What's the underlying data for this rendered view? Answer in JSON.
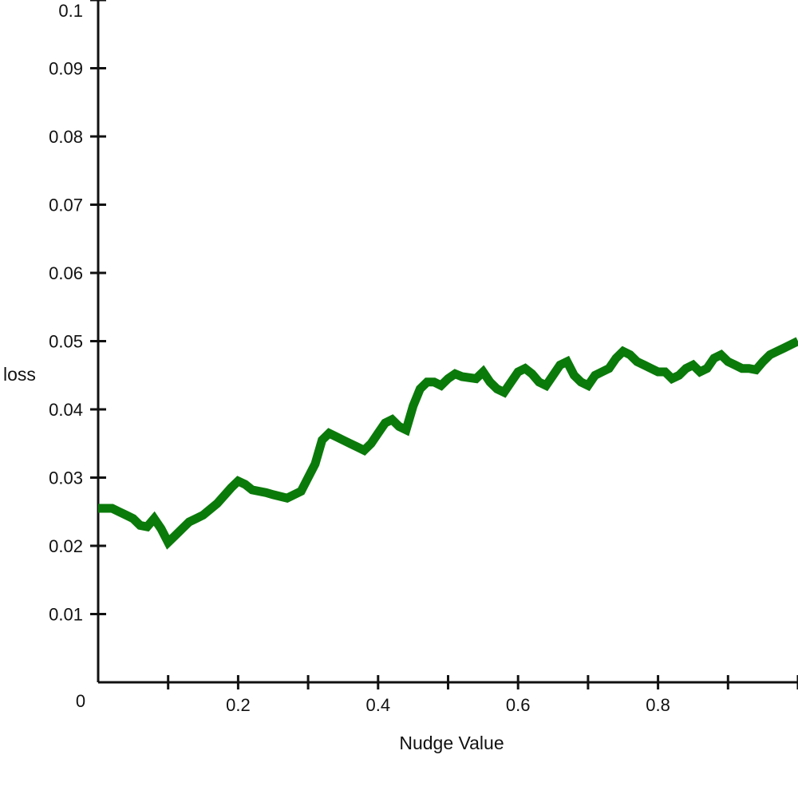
{
  "chart_data": {
    "type": "line",
    "xlabel": "Nudge Value",
    "ylabel": "loss",
    "xlim": [
      0,
      1.0
    ],
    "ylim": [
      0,
      0.1
    ],
    "x_ticks": [
      0.1,
      0.2,
      0.3,
      0.4,
      0.5,
      0.6,
      0.7,
      0.8,
      0.9,
      1.0
    ],
    "x_tick_labels": [
      {
        "value": 0,
        "label": "0"
      },
      {
        "value": 0.2,
        "label": "0.2"
      },
      {
        "value": 0.4,
        "label": "0.4"
      },
      {
        "value": 0.6,
        "label": "0.6"
      },
      {
        "value": 0.8,
        "label": "0.8"
      }
    ],
    "y_ticks": [
      {
        "value": 0.01,
        "label": "0.01"
      },
      {
        "value": 0.02,
        "label": "0.02"
      },
      {
        "value": 0.03,
        "label": "0.03"
      },
      {
        "value": 0.04,
        "label": "0.04"
      },
      {
        "value": 0.05,
        "label": "0.05"
      },
      {
        "value": 0.06,
        "label": "0.06"
      },
      {
        "value": 0.07,
        "label": "0.07"
      },
      {
        "value": 0.08,
        "label": "0.08"
      },
      {
        "value": 0.09,
        "label": "0.09"
      },
      {
        "value": 0.1,
        "label": "0.1"
      }
    ],
    "grid": false,
    "series": [
      {
        "color": "#0a7a0a",
        "x": [
          0.0,
          0.02,
          0.03,
          0.04,
          0.05,
          0.06,
          0.07,
          0.08,
          0.09,
          0.1,
          0.11,
          0.12,
          0.13,
          0.14,
          0.15,
          0.17,
          0.19,
          0.2,
          0.21,
          0.22,
          0.24,
          0.25,
          0.27,
          0.29,
          0.3,
          0.31,
          0.32,
          0.33,
          0.34,
          0.35,
          0.36,
          0.37,
          0.38,
          0.39,
          0.4,
          0.41,
          0.42,
          0.43,
          0.44,
          0.45,
          0.46,
          0.47,
          0.48,
          0.49,
          0.5,
          0.51,
          0.52,
          0.54,
          0.55,
          0.56,
          0.57,
          0.58,
          0.59,
          0.6,
          0.61,
          0.62,
          0.63,
          0.64,
          0.65,
          0.66,
          0.67,
          0.68,
          0.69,
          0.7,
          0.71,
          0.72,
          0.73,
          0.74,
          0.75,
          0.76,
          0.77,
          0.78,
          0.79,
          0.8,
          0.81,
          0.82,
          0.83,
          0.84,
          0.85,
          0.86,
          0.87,
          0.88,
          0.89,
          0.9,
          0.91,
          0.92,
          0.93,
          0.94,
          0.95,
          0.96,
          0.97,
          0.98,
          0.99,
          1.0
        ],
        "y": [
          0.0255,
          0.0255,
          0.025,
          0.0245,
          0.024,
          0.023,
          0.0228,
          0.024,
          0.0225,
          0.0205,
          0.0215,
          0.0225,
          0.0235,
          0.024,
          0.0245,
          0.0262,
          0.0285,
          0.0295,
          0.029,
          0.0282,
          0.0278,
          0.0275,
          0.027,
          0.028,
          0.03,
          0.032,
          0.0355,
          0.0365,
          0.036,
          0.0355,
          0.035,
          0.0345,
          0.034,
          0.035,
          0.0365,
          0.038,
          0.0385,
          0.0375,
          0.037,
          0.0405,
          0.043,
          0.044,
          0.044,
          0.0435,
          0.0445,
          0.0452,
          0.0448,
          0.0445,
          0.0455,
          0.044,
          0.043,
          0.0425,
          0.044,
          0.0455,
          0.046,
          0.0452,
          0.044,
          0.0435,
          0.045,
          0.0465,
          0.047,
          0.045,
          0.044,
          0.0435,
          0.045,
          0.0455,
          0.046,
          0.0475,
          0.0485,
          0.048,
          0.047,
          0.0465,
          0.046,
          0.0455,
          0.0455,
          0.0445,
          0.045,
          0.046,
          0.0465,
          0.0455,
          0.046,
          0.0475,
          0.048,
          0.047,
          0.0465,
          0.046,
          0.046,
          0.0458,
          0.047,
          0.048,
          0.0485,
          0.049,
          0.0495,
          0.05
        ]
      }
    ]
  }
}
